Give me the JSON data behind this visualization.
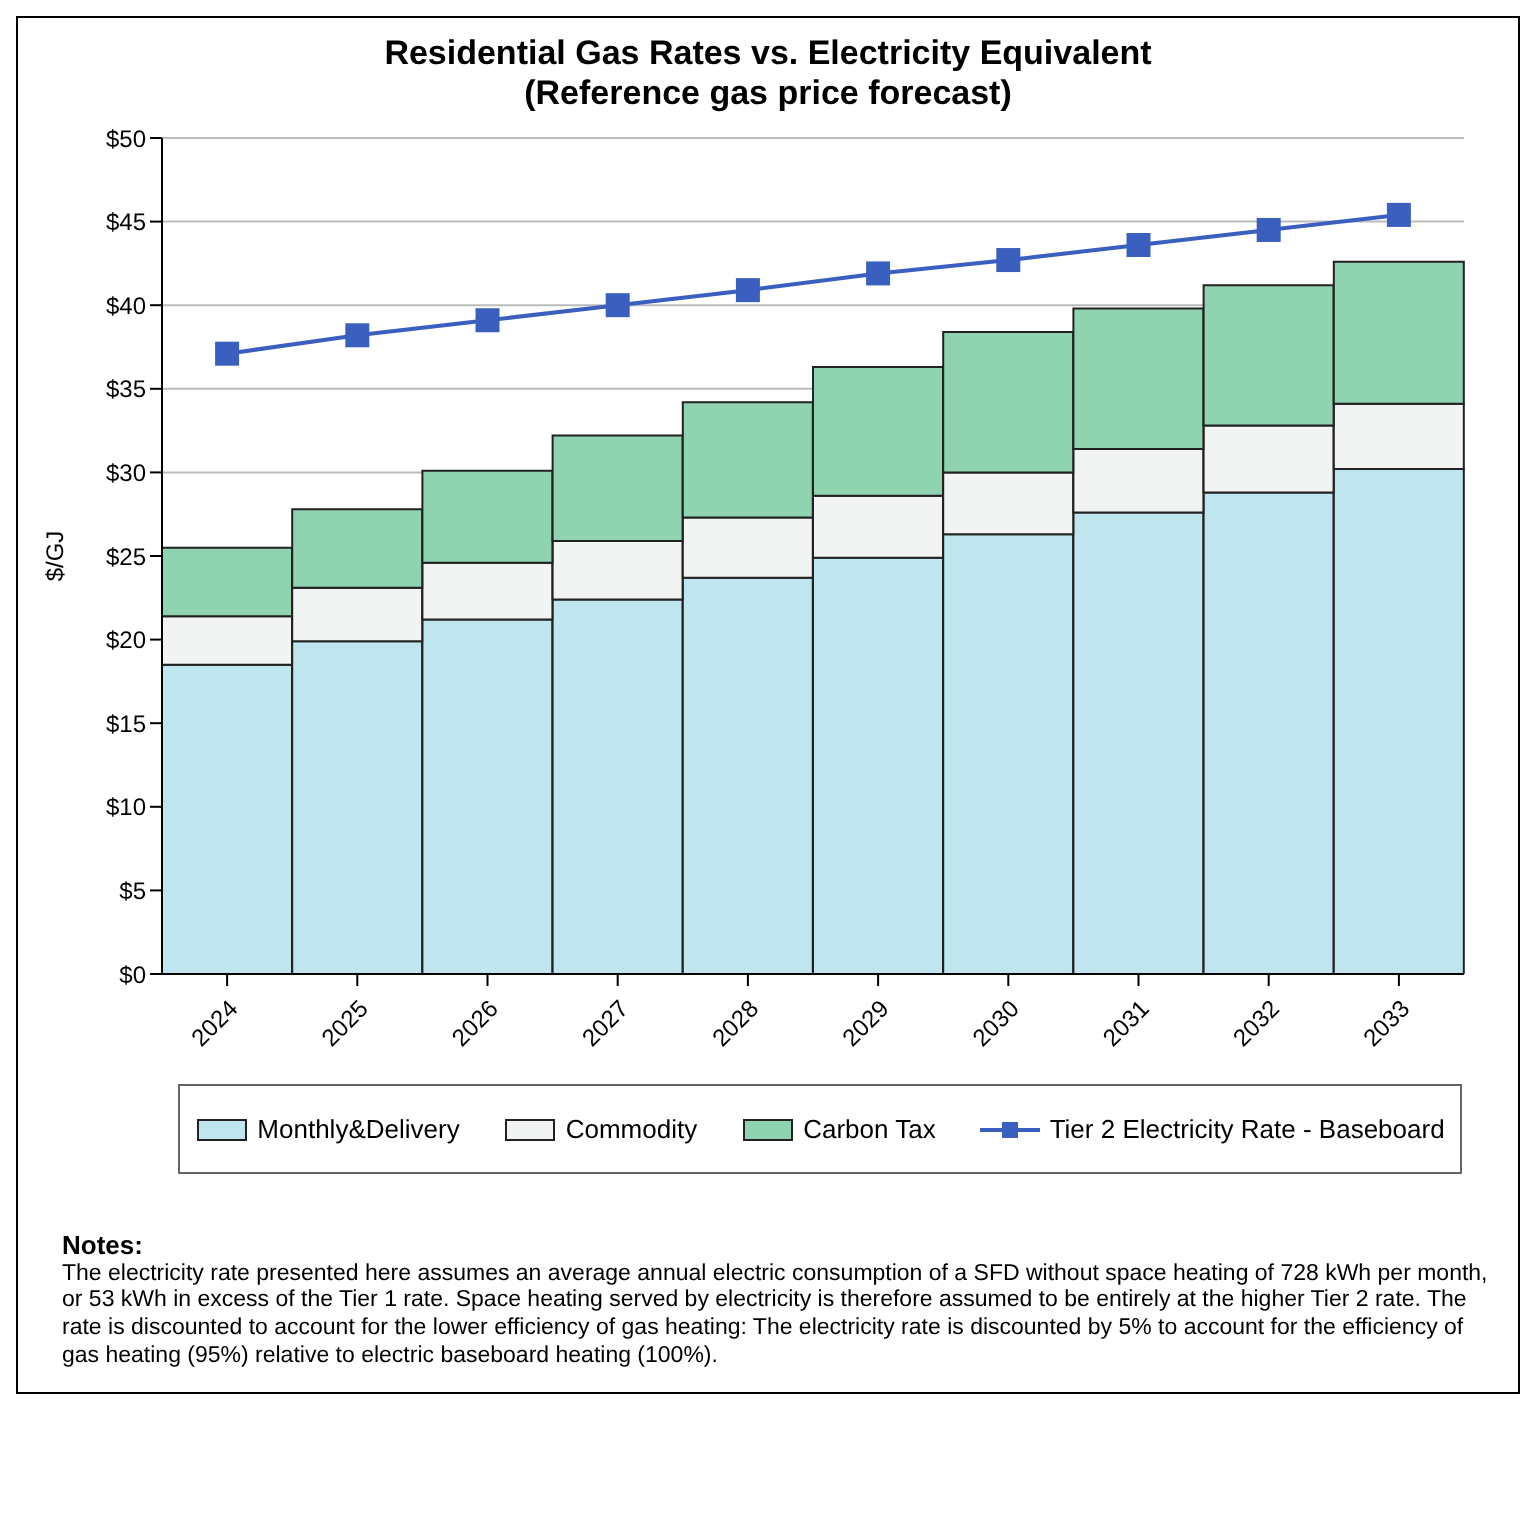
{
  "chart_data": {
    "type": "bar",
    "title": "Residential Gas Rates vs. Electricity Equivalent",
    "subtitle": "(Reference gas price forecast)",
    "ylabel": "$/GJ",
    "categories": [
      "2024",
      "2025",
      "2026",
      "2027",
      "2028",
      "2029",
      "2030",
      "2031",
      "2032",
      "2033"
    ],
    "stacked": true,
    "series": [
      {
        "name": "Monthly&Delivery",
        "color": "#bfe6ee",
        "values": [
          18.5,
          19.9,
          21.2,
          22.4,
          23.7,
          24.9,
          26.3,
          27.6,
          28.8,
          30.2
        ]
      },
      {
        "name": "Commodity",
        "color": "#f2f4f4",
        "values": [
          2.9,
          3.2,
          3.4,
          3.5,
          3.6,
          3.7,
          3.7,
          3.8,
          4.0,
          3.9
        ]
      },
      {
        "name": "Carbon Tax",
        "color": "#8fd3b0",
        "values": [
          4.1,
          4.7,
          5.5,
          6.3,
          6.9,
          7.7,
          8.4,
          8.4,
          8.4,
          8.5
        ]
      },
      {
        "name": "Tier 2 Electricity Rate - Baseboard",
        "type": "line",
        "color": "#3a5fbf",
        "marker": "square",
        "values": [
          37.1,
          38.2,
          39.1,
          40.0,
          40.9,
          41.9,
          42.7,
          43.6,
          44.5,
          45.4
        ]
      }
    ],
    "ylim": [
      0,
      50
    ],
    "yticks": [
      {
        "value": 0,
        "label": "$0"
      },
      {
        "value": 5,
        "label": "$5"
      },
      {
        "value": 10,
        "label": "$10"
      },
      {
        "value": 15,
        "label": "$15"
      },
      {
        "value": 20,
        "label": "$20"
      },
      {
        "value": 25,
        "label": "$25"
      },
      {
        "value": 30,
        "label": "$30"
      },
      {
        "value": 35,
        "label": "$35"
      },
      {
        "value": 40,
        "label": "$40"
      },
      {
        "value": 45,
        "label": "$45"
      },
      {
        "value": 50,
        "label": "$50"
      }
    ],
    "grid": "y",
    "legend": "bottom",
    "annotations": [
      "Notes:",
      "The electricity rate presented here assumes an average annual electric consumption of a SFD without space heating of 728 kWh per month, or 53 kWh in excess of the Tier 1 rate.  Space heating served by electricity is therefore assumed to be entirely at the higher Tier 2 rate.  The rate is discounted to account for the lower efficiency of gas heating:  The electricity rate is discounted by 5% to account for the efficiency of gas heating (95%) relative to electric baseboard heating (100%)."
    ]
  }
}
